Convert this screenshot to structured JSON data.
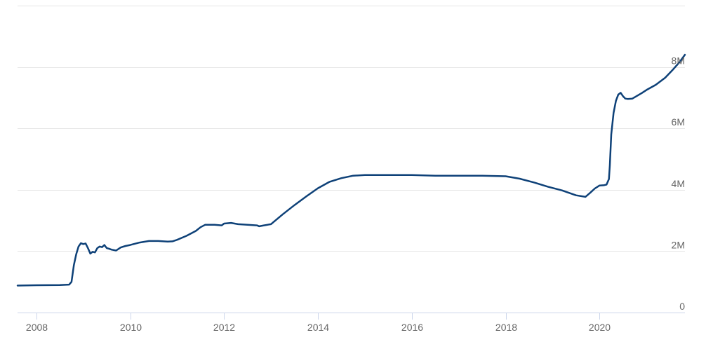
{
  "chart_data": {
    "type": "line",
    "title": "",
    "xlabel": "",
    "ylabel": "",
    "grid": true,
    "legend": "none",
    "xlim": [
      2007.6,
      2021.82
    ],
    "ylim": [
      0,
      10000000
    ],
    "x_ticks": [
      {
        "value": 2008,
        "label": "2008"
      },
      {
        "value": 2010,
        "label": "2010"
      },
      {
        "value": 2012,
        "label": "2012"
      },
      {
        "value": 2014,
        "label": "2014"
      },
      {
        "value": 2016,
        "label": "2016"
      },
      {
        "value": 2018,
        "label": "2018"
      },
      {
        "value": 2020,
        "label": "2020"
      }
    ],
    "y_ticks": [
      {
        "value": 0,
        "label": "0"
      },
      {
        "value": 2000000,
        "label": "2M"
      },
      {
        "value": 4000000,
        "label": "4M"
      },
      {
        "value": 6000000,
        "label": "6M"
      },
      {
        "value": 8000000,
        "label": "8M"
      }
    ],
    "colors": {
      "line": "#0e4178",
      "grid": "#e6e6e6",
      "axis": "#ccd6eb",
      "tick_text": "#666666"
    },
    "series": [
      {
        "points": [
          [
            2007.6,
            880000
          ],
          [
            2008.0,
            890000
          ],
          [
            2008.5,
            895000
          ],
          [
            2008.7,
            910000
          ],
          [
            2008.75,
            1000000
          ],
          [
            2008.8,
            1550000
          ],
          [
            2008.85,
            1900000
          ],
          [
            2008.9,
            2150000
          ],
          [
            2008.95,
            2260000
          ],
          [
            2009.0,
            2230000
          ],
          [
            2009.05,
            2250000
          ],
          [
            2009.1,
            2100000
          ],
          [
            2009.15,
            1920000
          ],
          [
            2009.2,
            1980000
          ],
          [
            2009.25,
            1960000
          ],
          [
            2009.3,
            2100000
          ],
          [
            2009.35,
            2150000
          ],
          [
            2009.4,
            2130000
          ],
          [
            2009.45,
            2200000
          ],
          [
            2009.5,
            2100000
          ],
          [
            2009.55,
            2080000
          ],
          [
            2009.6,
            2050000
          ],
          [
            2009.7,
            2020000
          ],
          [
            2009.8,
            2120000
          ],
          [
            2009.9,
            2170000
          ],
          [
            2010.0,
            2200000
          ],
          [
            2010.2,
            2280000
          ],
          [
            2010.4,
            2330000
          ],
          [
            2010.6,
            2330000
          ],
          [
            2010.8,
            2310000
          ],
          [
            2010.9,
            2320000
          ],
          [
            2011.0,
            2370000
          ],
          [
            2011.2,
            2500000
          ],
          [
            2011.4,
            2660000
          ],
          [
            2011.5,
            2780000
          ],
          [
            2011.6,
            2860000
          ],
          [
            2011.8,
            2860000
          ],
          [
            2011.95,
            2840000
          ],
          [
            2012.0,
            2900000
          ],
          [
            2012.15,
            2920000
          ],
          [
            2012.3,
            2880000
          ],
          [
            2012.5,
            2860000
          ],
          [
            2012.7,
            2840000
          ],
          [
            2012.75,
            2810000
          ],
          [
            2012.85,
            2840000
          ],
          [
            2013.0,
            2880000
          ],
          [
            2013.25,
            3200000
          ],
          [
            2013.5,
            3500000
          ],
          [
            2013.75,
            3780000
          ],
          [
            2014.0,
            4050000
          ],
          [
            2014.25,
            4260000
          ],
          [
            2014.5,
            4380000
          ],
          [
            2014.75,
            4460000
          ],
          [
            2015.0,
            4480000
          ],
          [
            2015.5,
            4480000
          ],
          [
            2016.0,
            4480000
          ],
          [
            2016.5,
            4460000
          ],
          [
            2017.0,
            4460000
          ],
          [
            2017.5,
            4460000
          ],
          [
            2018.0,
            4440000
          ],
          [
            2018.3,
            4360000
          ],
          [
            2018.6,
            4240000
          ],
          [
            2018.9,
            4100000
          ],
          [
            2019.2,
            3980000
          ],
          [
            2019.5,
            3820000
          ],
          [
            2019.7,
            3770000
          ],
          [
            2019.8,
            3900000
          ],
          [
            2019.9,
            4040000
          ],
          [
            2020.0,
            4140000
          ],
          [
            2020.1,
            4150000
          ],
          [
            2020.15,
            4170000
          ],
          [
            2020.2,
            4350000
          ],
          [
            2020.22,
            4800000
          ],
          [
            2020.25,
            5800000
          ],
          [
            2020.3,
            6500000
          ],
          [
            2020.35,
            6900000
          ],
          [
            2020.4,
            7100000
          ],
          [
            2020.45,
            7160000
          ],
          [
            2020.5,
            7050000
          ],
          [
            2020.55,
            6970000
          ],
          [
            2020.6,
            6960000
          ],
          [
            2020.7,
            6970000
          ],
          [
            2020.9,
            7150000
          ],
          [
            2021.0,
            7250000
          ],
          [
            2021.2,
            7420000
          ],
          [
            2021.4,
            7650000
          ],
          [
            2021.55,
            7890000
          ],
          [
            2021.7,
            8150000
          ],
          [
            2021.82,
            8400000
          ]
        ]
      }
    ]
  }
}
